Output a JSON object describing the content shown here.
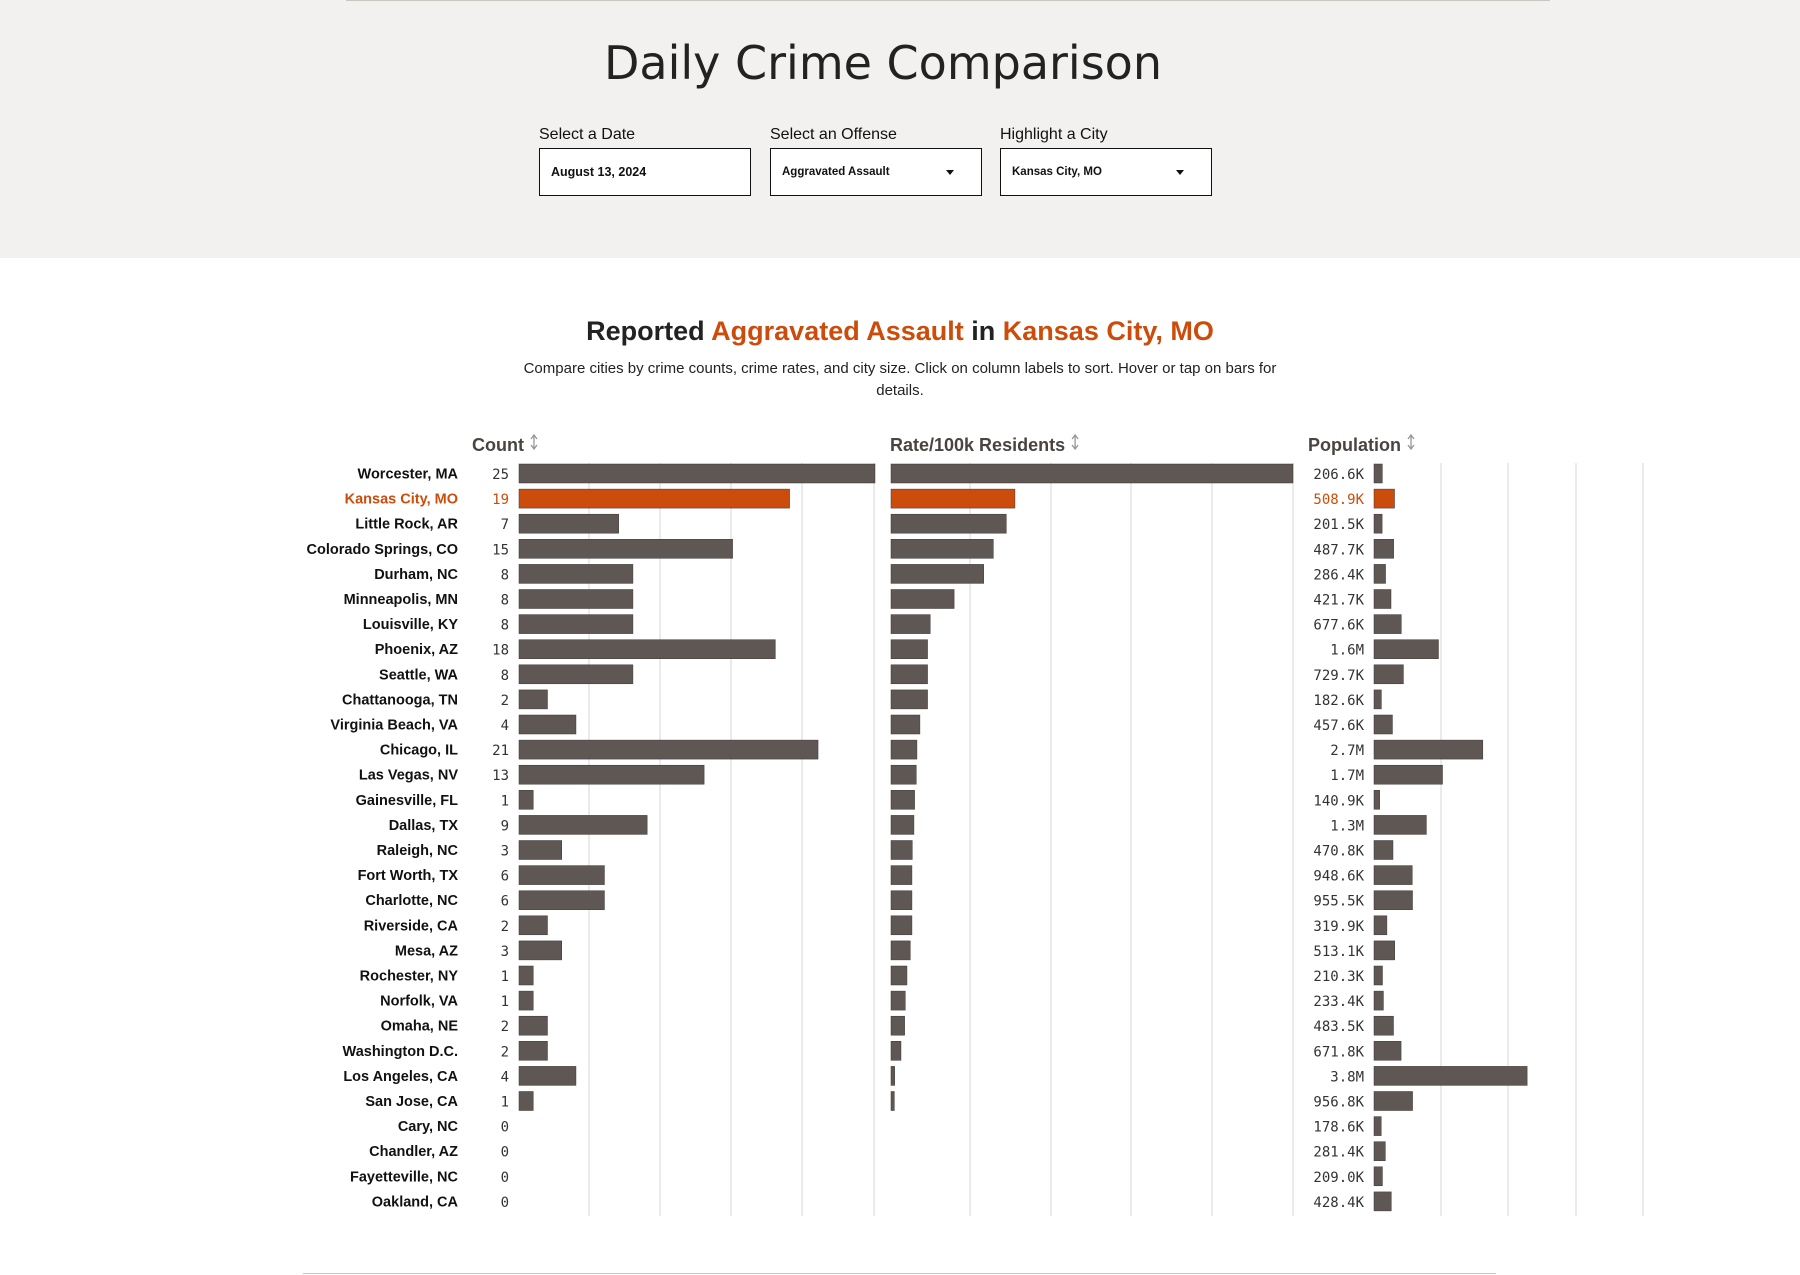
{
  "header": {
    "title": "Daily Crime Comparison",
    "date_label": "Select a Date",
    "date_value": "August 13, 2024",
    "offense_label": "Select an Offense",
    "offense_value": "Aggravated Assault",
    "city_label": "Highlight a City",
    "city_value": "Kansas City, MO"
  },
  "chart_title": {
    "prefix": "Reported",
    "offense": "Aggravated Assault",
    "connector": "in",
    "city": "Kansas City, MO"
  },
  "chart_subtitle": "Compare cities by crime counts, crime rates, and city size. Click on column labels to sort. Hover or tap on bars for details.",
  "colors": {
    "bar": "#5f5753",
    "highlight": "#cc4c0b",
    "grid": "#d8d6d4",
    "header_text": "#4a4441",
    "sort_icon": "#9b9593"
  },
  "chart_data": {
    "type": "bar",
    "highlight": "Kansas City, MO",
    "columns": [
      "Count",
      "Rate/100k Residents",
      "Population"
    ],
    "categories": [
      "Worcester, MA",
      "Kansas City, MO",
      "Little Rock, AR",
      "Colorado Springs, CO",
      "Durham, NC",
      "Minneapolis, MN",
      "Louisville, KY",
      "Phoenix, AZ",
      "Seattle, WA",
      "Chattanooga, TN",
      "Virginia Beach, VA",
      "Chicago, IL",
      "Las Vegas, NV",
      "Gainesville, FL",
      "Dallas, TX",
      "Raleigh, NC",
      "Fort Worth, TX",
      "Charlotte, NC",
      "Riverside, CA",
      "Mesa, AZ",
      "Rochester, NY",
      "Norfolk, VA",
      "Omaha, NE",
      "Washington D.C.",
      "Los Angeles, CA",
      "San Jose, CA",
      "Cary, NC",
      "Chandler, AZ",
      "Fayetteville, NC",
      "Oakland, CA"
    ],
    "series": [
      {
        "name": "Count",
        "values": [
          25,
          19,
          7,
          15,
          8,
          8,
          8,
          18,
          8,
          2,
          4,
          21,
          13,
          1,
          9,
          3,
          6,
          6,
          2,
          3,
          1,
          1,
          2,
          2,
          4,
          1,
          0,
          0,
          0,
          0
        ],
        "xlim": [
          0,
          25
        ]
      },
      {
        "name": "Rate/100k Residents",
        "values": [
          12.1,
          3.73,
          3.47,
          3.08,
          2.79,
          1.9,
          1.18,
          1.1,
          1.1,
          1.1,
          0.87,
          0.78,
          0.76,
          0.71,
          0.69,
          0.64,
          0.63,
          0.63,
          0.63,
          0.58,
          0.48,
          0.43,
          0.41,
          0.3,
          0.11,
          0.1,
          0,
          0,
          0,
          0
        ],
        "xlim": [
          0,
          12.1
        ]
      },
      {
        "name": "Population",
        "values": [
          "206.6K",
          "508.9K",
          "201.5K",
          "487.7K",
          "286.4K",
          "421.7K",
          "677.6K",
          "1.6M",
          "729.7K",
          "182.6K",
          "457.6K",
          "2.7M",
          "1.7M",
          "140.9K",
          "1.3M",
          "470.8K",
          "948.6K",
          "955.5K",
          "319.9K",
          "513.1K",
          "210.3K",
          "233.4K",
          "483.5K",
          "671.8K",
          "3.8M",
          "956.8K",
          "178.6K",
          "281.4K",
          "209.0K",
          "428.4K"
        ],
        "numeric": [
          206600,
          508900,
          201500,
          487700,
          286400,
          421700,
          677600,
          1600000,
          729700,
          182600,
          457600,
          2700000,
          1700000,
          140900,
          1300000,
          470800,
          948600,
          955500,
          319900,
          513100,
          210300,
          233400,
          483500,
          671800,
          3800000,
          956800,
          178600,
          281400,
          209000,
          428400
        ],
        "xlim": [
          0,
          6700000
        ]
      }
    ]
  }
}
